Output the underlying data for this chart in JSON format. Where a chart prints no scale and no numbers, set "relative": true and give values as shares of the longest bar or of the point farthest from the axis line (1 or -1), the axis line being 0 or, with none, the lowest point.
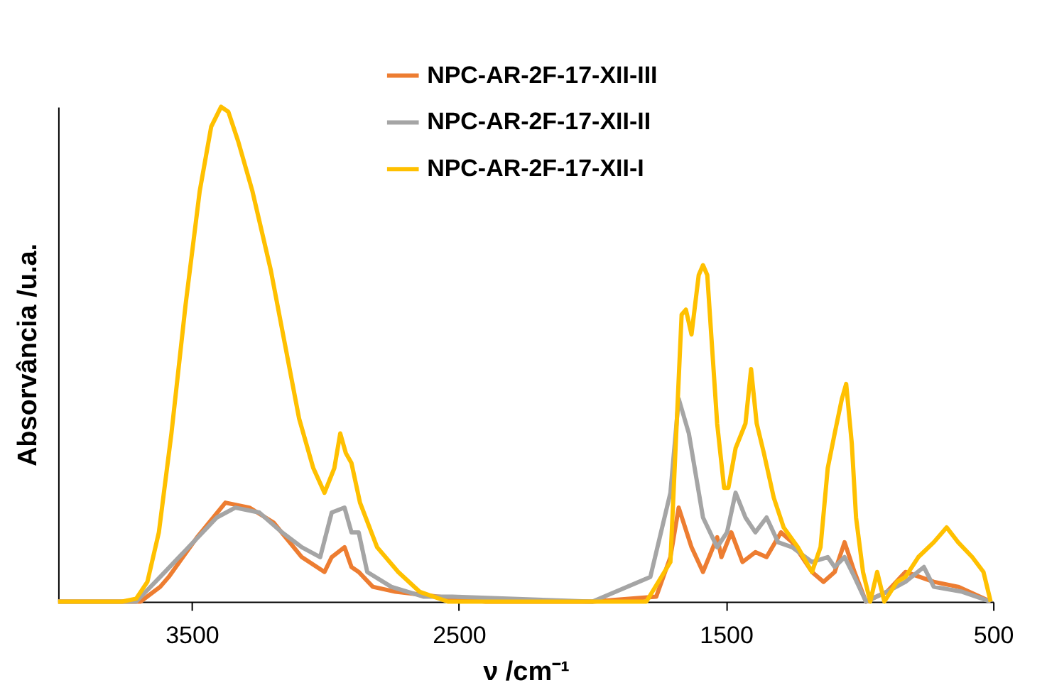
{
  "chart_data": {
    "type": "line",
    "relative": true,
    "xlabel": "ν /cm⁻¹",
    "ylabel": "Absorvância /u.a.",
    "xlim": [
      4000,
      500
    ],
    "xticks": [
      3500,
      2500,
      1500,
      500
    ],
    "legend": "top right",
    "grid": false,
    "line_style": "solid",
    "marker": "none",
    "series": [
      {
        "name": "NPC-AR-2F-17-XII-III",
        "color": "#ed7d31",
        "x": [
          4000,
          3692,
          3618,
          3586,
          3480,
          3374,
          3284,
          3194,
          3088,
          3003,
          2976,
          2928,
          2902,
          2875,
          2822,
          2737,
          2578,
          2400,
          2000,
          1761,
          1708,
          1677,
          1629,
          1586,
          1533,
          1517,
          1480,
          1438,
          1390,
          1348,
          1294,
          1252,
          1178,
          1135,
          1093,
          1056,
          1019,
          976,
          897,
          828,
          722,
          631,
          509
        ],
        "values": [
          0,
          0,
          0.03,
          0.05,
          0.13,
          0.2,
          0.19,
          0.16,
          0.09,
          0.06,
          0.09,
          0.11,
          0.07,
          0.06,
          0.03,
          0.02,
          0.01,
          0,
          0,
          0.01,
          0.09,
          0.19,
          0.11,
          0.06,
          0.13,
          0.09,
          0.14,
          0.08,
          0.1,
          0.09,
          0.14,
          0.12,
          0.06,
          0.04,
          0.06,
          0.12,
          0.06,
          0,
          0.02,
          0.06,
          0.04,
          0.03,
          0
        ]
      },
      {
        "name": "NPC-AR-2F-17-XII-II",
        "color": "#a5a5a5",
        "x": [
          4000,
          3708,
          3618,
          3512,
          3406,
          3337,
          3247,
          3162,
          3088,
          3019,
          2976,
          2928,
          2902,
          2875,
          2843,
          2753,
          2631,
          2525,
          2000,
          1783,
          1708,
          1677,
          1639,
          1586,
          1533,
          1496,
          1464,
          1427,
          1390,
          1348,
          1305,
          1252,
          1178,
          1119,
          1093,
          1056,
          1019,
          976,
          897,
          828,
          759,
          722,
          616,
          509
        ],
        "values": [
          0,
          0,
          0.05,
          0.11,
          0.17,
          0.19,
          0.18,
          0.14,
          0.11,
          0.09,
          0.18,
          0.19,
          0.14,
          0.14,
          0.06,
          0.03,
          0.01,
          0.01,
          0,
          0.05,
          0.22,
          0.41,
          0.34,
          0.17,
          0.11,
          0.14,
          0.22,
          0.17,
          0.14,
          0.17,
          0.12,
          0.11,
          0.08,
          0.09,
          0.07,
          0.09,
          0.05,
          0,
          0.02,
          0.04,
          0.07,
          0.03,
          0.02,
          0
        ]
      },
      {
        "name": "NPC-AR-2F-17-XII-I",
        "color": "#ffc000",
        "x": [
          4000,
          3761,
          3708,
          3666,
          3623,
          3576,
          3523,
          3470,
          3427,
          3390,
          3363,
          3326,
          3273,
          3204,
          3151,
          3098,
          3045,
          3003,
          2966,
          2944,
          2923,
          2902,
          2870,
          2806,
          2727,
          2647,
          2541,
          2170,
          1850,
          1798,
          1708,
          1666,
          1650,
          1629,
          1602,
          1586,
          1570,
          1533,
          1507,
          1491,
          1464,
          1427,
          1406,
          1385,
          1358,
          1321,
          1284,
          1231,
          1178,
          1146,
          1119,
          1093,
          1066,
          1050,
          1029,
          1013,
          987,
          960,
          934,
          907,
          860,
          828,
          780,
          722,
          674,
          631,
          578,
          536,
          509
        ],
        "values": [
          0,
          0,
          0.006,
          0.04,
          0.14,
          0.34,
          0.6,
          0.83,
          0.96,
          1,
          0.99,
          0.93,
          0.83,
          0.67,
          0.52,
          0.37,
          0.27,
          0.22,
          0.27,
          0.34,
          0.3,
          0.28,
          0.2,
          0.11,
          0.06,
          0.02,
          0,
          0,
          0,
          0,
          0.08,
          0.58,
          0.59,
          0.54,
          0.66,
          0.68,
          0.66,
          0.36,
          0.23,
          0.23,
          0.31,
          0.36,
          0.47,
          0.36,
          0.3,
          0.21,
          0.15,
          0.11,
          0.06,
          0.11,
          0.27,
          0.34,
          0.41,
          0.44,
          0.32,
          0.17,
          0.06,
          0,
          0.06,
          0,
          0.04,
          0.05,
          0.09,
          0.12,
          0.15,
          0.12,
          0.09,
          0.06,
          0
        ]
      }
    ]
  }
}
